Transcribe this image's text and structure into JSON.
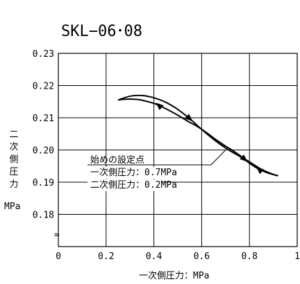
{
  "chart_data": {
    "type": "line",
    "title": "SKL−06･08",
    "xlabel": "一次側圧力：MPa",
    "ylabel_chars": [
      "二",
      "次",
      "側",
      "圧",
      "力"
    ],
    "ylabel_unit": "MPa",
    "xlim": [
      0,
      1
    ],
    "ylim": [
      0.17,
      0.23
    ],
    "x_ticks": [
      {
        "value": 0,
        "label": "0"
      },
      {
        "value": 0.2,
        "label": "0.2"
      },
      {
        "value": 0.4,
        "label": "0.4"
      },
      {
        "value": 0.6,
        "label": "0.6"
      },
      {
        "value": 0.8,
        "label": "0.8"
      },
      {
        "value": 1,
        "label": "1"
      }
    ],
    "y_ticks": [
      {
        "value": 0.23,
        "label": "0.23"
      },
      {
        "value": 0.22,
        "label": "0.22"
      },
      {
        "value": 0.21,
        "label": "0.21"
      },
      {
        "value": 0.2,
        "label": "0.20"
      },
      {
        "value": 0.19,
        "label": "0.19"
      },
      {
        "value": 0.18,
        "label": "0.18"
      }
    ],
    "axis_break_symbol": "≈",
    "grid": true,
    "series": [
      {
        "x": [
          0.25,
          0.3,
          0.35,
          0.4,
          0.45,
          0.5,
          0.55,
          0.6,
          0.65,
          0.7,
          0.75,
          0.8,
          0.85,
          0.9,
          0.92
        ],
        "y": [
          0.2155,
          0.2167,
          0.2169,
          0.2162,
          0.2148,
          0.2126,
          0.2097,
          0.2064,
          0.2033,
          0.2006,
          0.1984,
          0.1963,
          0.194,
          0.1924,
          0.192
        ]
      },
      {
        "x": [
          0.92,
          0.88,
          0.84,
          0.8,
          0.76,
          0.72,
          0.7,
          0.66,
          0.62,
          0.58,
          0.54,
          0.5,
          0.46,
          0.42,
          0.38,
          0.34,
          0.3,
          0.27,
          0.25
        ],
        "y": [
          0.192,
          0.1928,
          0.194,
          0.1959,
          0.1983,
          0.2003,
          0.2012,
          0.2032,
          0.2054,
          0.2074,
          0.209,
          0.2108,
          0.2124,
          0.2139,
          0.2149,
          0.2156,
          0.2158,
          0.2157,
          0.2155
        ]
      }
    ],
    "arrows": [
      {
        "x": 0.55,
        "y": 0.2097,
        "direction": "down-right"
      },
      {
        "x": 0.42,
        "y": 0.2139,
        "direction": "up-left"
      },
      {
        "x": 0.78,
        "y": 0.1971,
        "direction": "down-right"
      },
      {
        "x": 0.84,
        "y": 0.194,
        "direction": "up-left"
      }
    ],
    "annotation": {
      "point": {
        "x": 0.7,
        "y": 0.2
      },
      "lines": [
        "始めの設定点",
        "一次側圧力：0.7MPa",
        "二次側圧力：0.2MPa"
      ]
    }
  }
}
